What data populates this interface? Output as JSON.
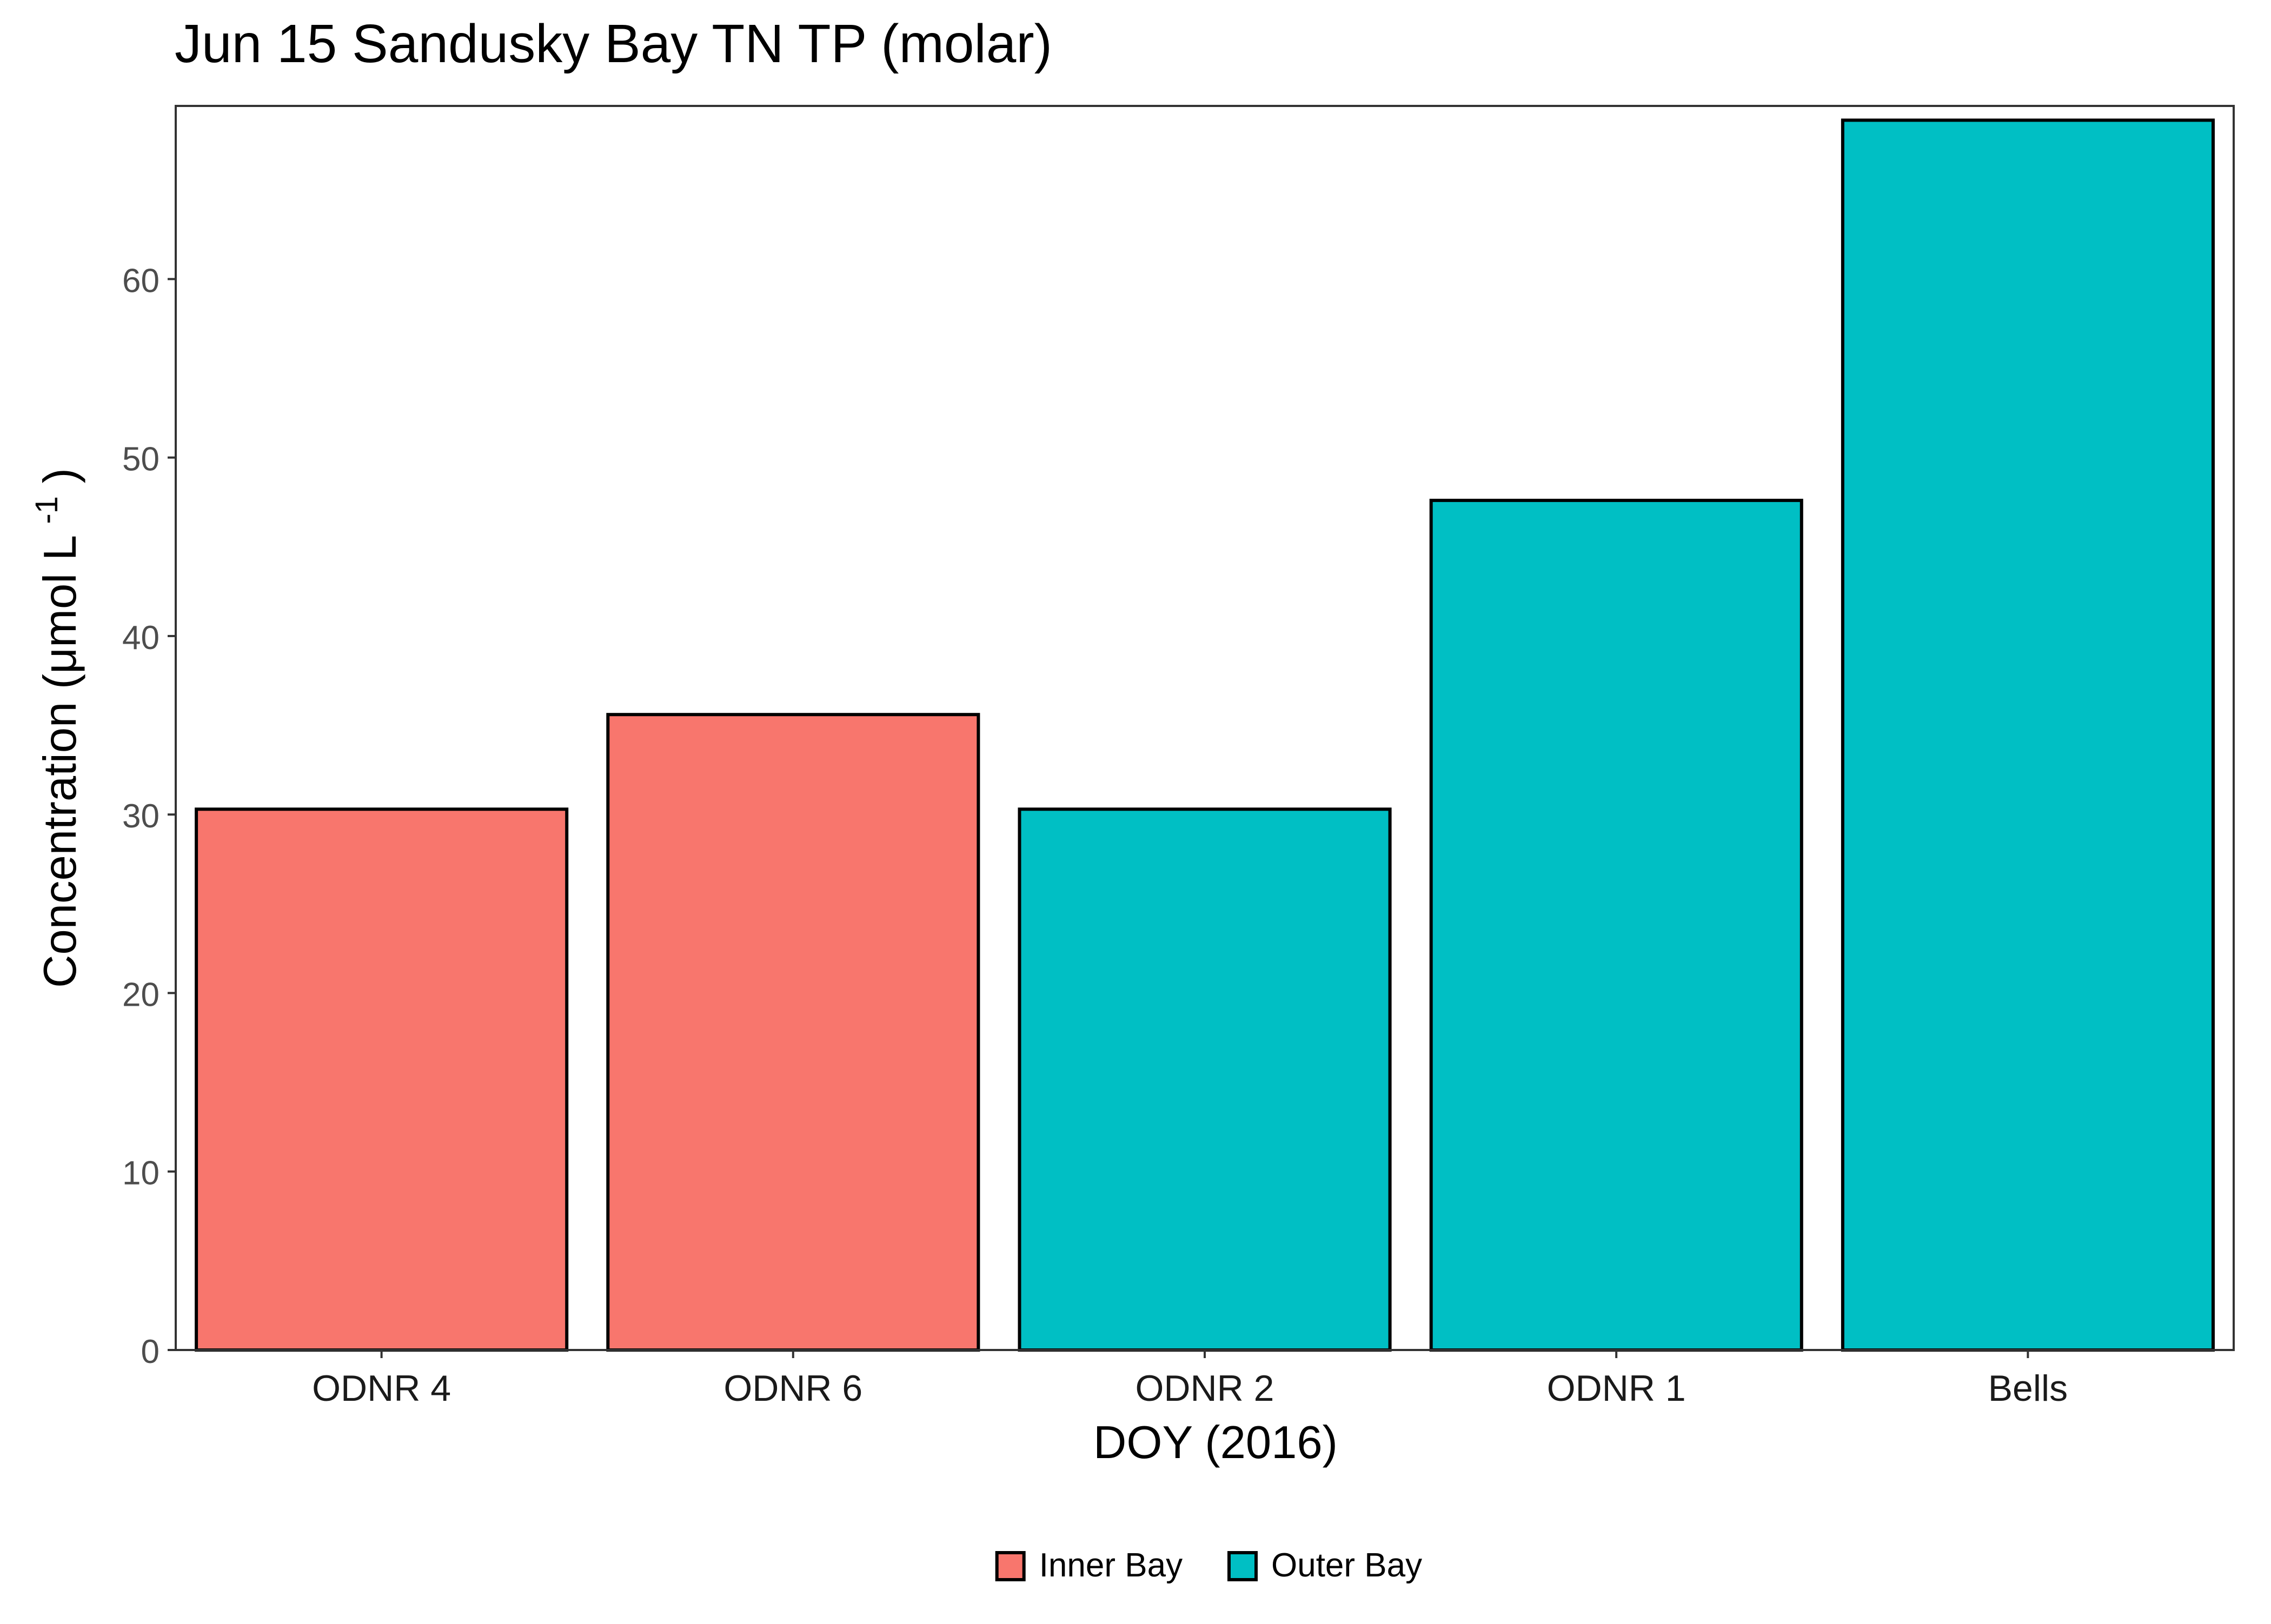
{
  "chart_data": {
    "type": "bar",
    "title": "Jun 15 Sandusky Bay TN TP (molar)",
    "xlabel": "DOY (2016)",
    "ylabel": {
      "main": "Concentration (μmol L",
      "superscript": "-1",
      "close": ")"
    },
    "categories": [
      "ODNR 4",
      "ODNR 6",
      "ODNR 2",
      "ODNR 1",
      "Bells"
    ],
    "values": [
      30.3,
      35.6,
      30.3,
      47.6,
      68.9
    ],
    "groups": [
      "Inner Bay",
      "Inner Bay",
      "Outer Bay",
      "Outer Bay",
      "Outer Bay"
    ],
    "ylim": [
      0,
      69.7
    ],
    "yticks": [
      0,
      10,
      20,
      30,
      40,
      50,
      60
    ],
    "grid": false,
    "legend": {
      "position": "bottom",
      "entries": [
        {
          "label": "Inner Bay",
          "color": "#F8766D"
        },
        {
          "label": "Outer Bay",
          "color": "#00BFC4"
        }
      ]
    }
  }
}
